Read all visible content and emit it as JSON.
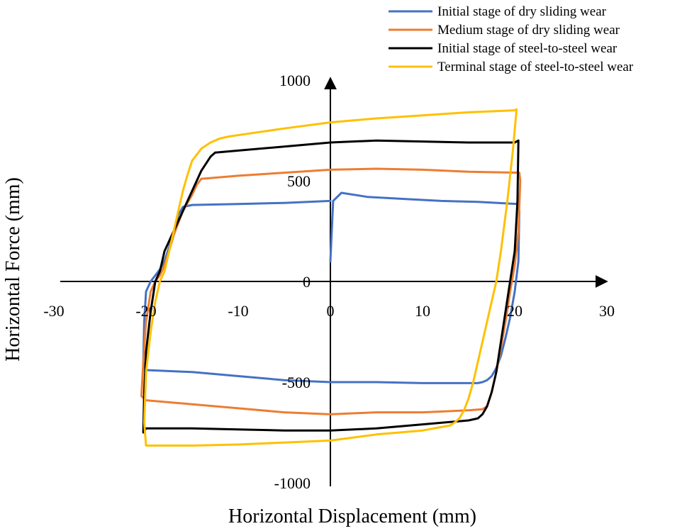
{
  "chart_data": {
    "type": "line",
    "xlabel": "Horizontal Displacement (mm)",
    "ylabel": "Horizontal Force (mm)",
    "xlim": [
      -30,
      30
    ],
    "ylim": [
      -1000,
      1000
    ],
    "x_ticks": [
      -30,
      -20,
      -10,
      0,
      10,
      20,
      30
    ],
    "y_ticks": [
      -1000,
      -500,
      0,
      500,
      1000
    ],
    "grid": false,
    "legend_position": "top-right",
    "series": [
      {
        "name": "Initial stage of dry sliding wear",
        "color": "#4472C4",
        "x": [
          0,
          0.3,
          1.2,
          4,
          8,
          12,
          16,
          20.3,
          20.5,
          20.4,
          20,
          19.5,
          19,
          18.5,
          18,
          17.5,
          17,
          16.5,
          16,
          15,
          10,
          5,
          0,
          -5,
          -10,
          -15,
          -20,
          -20.3,
          -20.2,
          -20,
          -19.5,
          -19,
          -18.5,
          -18,
          -17.5,
          -17,
          -16.5,
          -16,
          -15,
          -10,
          -5,
          0
        ],
        "y": [
          100,
          400,
          440,
          420,
          410,
          400,
          395,
          385,
          350,
          100,
          -50,
          -180,
          -280,
          -370,
          -430,
          -470,
          -490,
          -500,
          -505,
          -505,
          -505,
          -500,
          -500,
          -490,
          -470,
          -450,
          -440,
          -400,
          -200,
          -50,
          0,
          30,
          60,
          100,
          170,
          250,
          330,
          370,
          380,
          385,
          390,
          400
        ]
      },
      {
        "name": "Medium stage of dry sliding wear",
        "color": "#ED7D31",
        "x": [
          -14,
          -10,
          -5,
          0,
          5,
          10,
          15,
          20.5,
          20.6,
          20.4,
          20,
          19.5,
          19,
          18.5,
          18,
          17.5,
          17,
          16.5,
          15,
          10,
          5,
          0,
          -5,
          -10,
          -15,
          -20,
          -20.5,
          -20.3,
          -20,
          -19.5,
          -19,
          -18.5,
          -18,
          -17.5,
          -17,
          -16,
          -15,
          -14.5,
          -14
        ],
        "y": [
          510,
          525,
          540,
          555,
          560,
          555,
          545,
          540,
          500,
          250,
          80,
          -50,
          -200,
          -330,
          -450,
          -550,
          -620,
          -635,
          -640,
          -650,
          -650,
          -660,
          -650,
          -630,
          -610,
          -590,
          -570,
          -400,
          -200,
          -50,
          0,
          30,
          80,
          150,
          230,
          350,
          430,
          480,
          510
        ]
      },
      {
        "name": "Initial stage of steel-to-steel wear",
        "color": "#000000",
        "x": [
          -12.5,
          -10,
          -5,
          0,
          5,
          10,
          15,
          20,
          20.4,
          20.3,
          20,
          19.5,
          19,
          18.5,
          18,
          17.5,
          17,
          16.5,
          16,
          15,
          10,
          5,
          0,
          -5,
          -10,
          -15,
          -20,
          -20.3,
          -20.2,
          -20,
          -19.5,
          -19,
          -18.5,
          -18,
          -17,
          -16,
          -15,
          -14,
          -13,
          -12.5
        ],
        "y": [
          640,
          650,
          670,
          690,
          700,
          695,
          690,
          690,
          700,
          400,
          150,
          0,
          -150,
          -300,
          -450,
          -550,
          -620,
          -660,
          -680,
          -690,
          -710,
          -730,
          -740,
          -740,
          -735,
          -730,
          -730,
          -750,
          -550,
          -350,
          -150,
          0,
          50,
          150,
          250,
          350,
          450,
          550,
          620,
          640
        ]
      },
      {
        "name": "Terminal stage of steel-to-steel wear",
        "color": "#FFC000",
        "x": [
          -11,
          -8,
          -5,
          0,
          5,
          10,
          15,
          20,
          20.2,
          19.8,
          19.2,
          18.5,
          18,
          17.5,
          17,
          16.5,
          16,
          15.5,
          15,
          14.5,
          14,
          13.5,
          13,
          10,
          5,
          0,
          -5,
          -10,
          -15,
          -20,
          -20.2,
          -20,
          -19.5,
          -19,
          -18.5,
          -18,
          -17.5,
          -17,
          -16.5,
          -16,
          -15.5,
          -15,
          -14,
          -13,
          -12,
          -11
        ],
        "y": [
          720,
          740,
          760,
          790,
          810,
          825,
          840,
          850,
          855,
          650,
          400,
          150,
          0,
          -100,
          -200,
          -300,
          -400,
          -500,
          -580,
          -640,
          -680,
          -700,
          -715,
          -740,
          -760,
          -790,
          -800,
          -810,
          -815,
          -815,
          -700,
          -450,
          -250,
          -100,
          0,
          50,
          150,
          250,
          350,
          450,
          530,
          600,
          660,
          690,
          710,
          720
        ]
      }
    ]
  }
}
